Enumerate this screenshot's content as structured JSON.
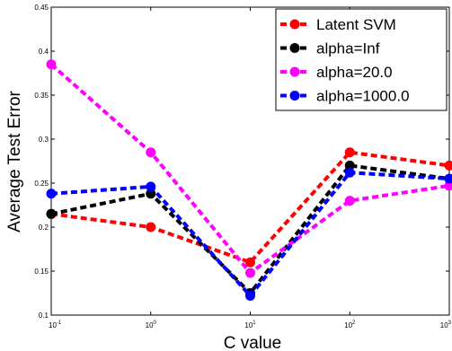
{
  "chart_data": {
    "type": "line",
    "xscale": "log",
    "x": [
      0.1,
      1,
      10,
      100,
      1000
    ],
    "x_tick_labels": [
      {
        "base": "10",
        "exp": "-1"
      },
      {
        "base": "10",
        "exp": "0"
      },
      {
        "base": "10",
        "exp": "1"
      },
      {
        "base": "10",
        "exp": "2"
      },
      {
        "base": "10",
        "exp": "3"
      }
    ],
    "y_ticks": [
      0.1,
      0.15,
      0.2,
      0.25,
      0.3,
      0.35,
      0.4,
      0.45
    ],
    "y_tick_labels": [
      "0.1",
      "0.15",
      "0.2",
      "0.25",
      "0.3",
      "0.35",
      "0.4",
      "0.45"
    ],
    "xlim": [
      0.1,
      1000
    ],
    "ylim": [
      0.1,
      0.45
    ],
    "xlabel": "C value",
    "ylabel": "Average Test Error",
    "legend_position": "top-right",
    "grid": false,
    "series": [
      {
        "name": "Latent SVM",
        "color": "#ff0000",
        "values": [
          0.215,
          0.2,
          0.16,
          0.285,
          0.27
        ]
      },
      {
        "name": "alpha=Inf",
        "color": "#000000",
        "values": [
          0.215,
          0.238,
          0.125,
          0.27,
          0.255
        ]
      },
      {
        "name": "alpha=20.0",
        "color": "#ff00ff",
        "values": [
          0.385,
          0.285,
          0.148,
          0.23,
          0.247
        ]
      },
      {
        "name": "alpha=1000.0",
        "color": "#0000ff",
        "values": [
          0.238,
          0.246,
          0.122,
          0.262,
          0.255
        ]
      }
    ]
  }
}
